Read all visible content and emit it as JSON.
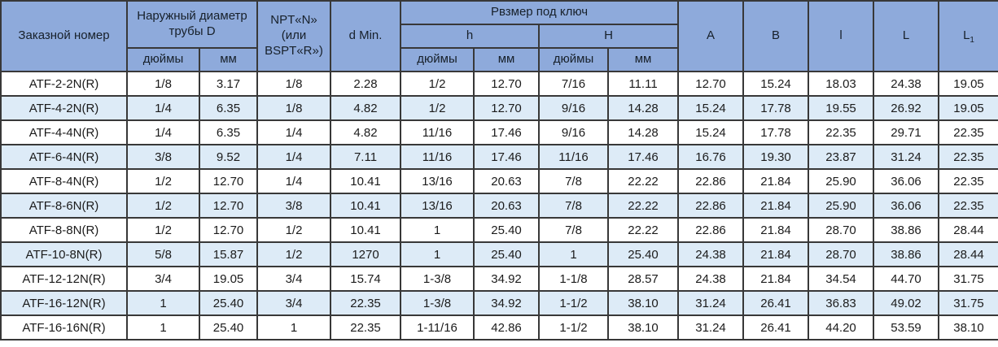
{
  "table": {
    "header": {
      "order_number": "Заказной номер",
      "outer_diameter": "Наружный диаметр трубы D",
      "npt_thread": "NPT«N»\n(или\nBSPT«R»)",
      "d_min": "d Min.",
      "wrench_size": "Рвзмер под ключ",
      "h_lower": "h",
      "h_upper": "H",
      "inches": "дюймы",
      "mm": "мм",
      "col_a": "A",
      "col_b": "B",
      "col_l_small": "l",
      "col_l_big": "L",
      "col_l1_base": "L",
      "col_l1_sub": "1"
    },
    "rows": [
      [
        "ATF-2-2N(R)",
        "1/8",
        "3.17",
        "1/8",
        "2.28",
        "1/2",
        "12.70",
        "7/16",
        "11.11",
        "12.70",
        "15.24",
        "18.03",
        "24.38",
        "19.05"
      ],
      [
        "ATF-4-2N(R)",
        "1/4",
        "6.35",
        "1/8",
        "4.82",
        "1/2",
        "12.70",
        "9/16",
        "14.28",
        "15.24",
        "17.78",
        "19.55",
        "26.92",
        "19.05"
      ],
      [
        "ATF-4-4N(R)",
        "1/4",
        "6.35",
        "1/4",
        "4.82",
        "11/16",
        "17.46",
        "9/16",
        "14.28",
        "15.24",
        "17.78",
        "22.35",
        "29.71",
        "22.35"
      ],
      [
        "ATF-6-4N(R)",
        "3/8",
        "9.52",
        "1/4",
        "7.11",
        "11/16",
        "17.46",
        "11/16",
        "17.46",
        "16.76",
        "19.30",
        "23.87",
        "31.24",
        "22.35"
      ],
      [
        "ATF-8-4N(R)",
        "1/2",
        "12.70",
        "1/4",
        "10.41",
        "13/16",
        "20.63",
        "7/8",
        "22.22",
        "22.86",
        "21.84",
        "25.90",
        "36.06",
        "22.35"
      ],
      [
        "ATF-8-6N(R)",
        "1/2",
        "12.70",
        "3/8",
        "10.41",
        "13/16",
        "20.63",
        "7/8",
        "22.22",
        "22.86",
        "21.84",
        "25.90",
        "36.06",
        "22.35"
      ],
      [
        "ATF-8-8N(R)",
        "1/2",
        "12.70",
        "1/2",
        "10.41",
        "1",
        "25.40",
        "7/8",
        "22.22",
        "22.86",
        "21.84",
        "28.70",
        "38.86",
        "28.44"
      ],
      [
        "ATF-10-8N(R)",
        "5/8",
        "15.87",
        "1/2",
        "1270",
        "1",
        "25.40",
        "1",
        "25.40",
        "24.38",
        "21.84",
        "28.70",
        "38.86",
        "28.44"
      ],
      [
        "ATF-12-12N(R)",
        "3/4",
        "19.05",
        "3/4",
        "15.74",
        "1-3/8",
        "34.92",
        "1-1/8",
        "28.57",
        "24.38",
        "21.84",
        "34.54",
        "44.70",
        "31.75"
      ],
      [
        "ATF-16-12N(R)",
        "1",
        "25.40",
        "3/4",
        "22.35",
        "1-3/8",
        "34.92",
        "1-1/2",
        "38.10",
        "31.24",
        "26.41",
        "36.83",
        "49.02",
        "31.75"
      ],
      [
        "ATF-16-16N(R)",
        "1",
        "25.40",
        "1",
        "22.35",
        "1-11/16",
        "42.86",
        "1-1/2",
        "38.10",
        "31.24",
        "26.41",
        "44.20",
        "53.59",
        "38.10"
      ]
    ]
  },
  "colors": {
    "header_bg": "#8EAADB",
    "stripe_bg": "#DDEBF7",
    "border": "#383838"
  }
}
